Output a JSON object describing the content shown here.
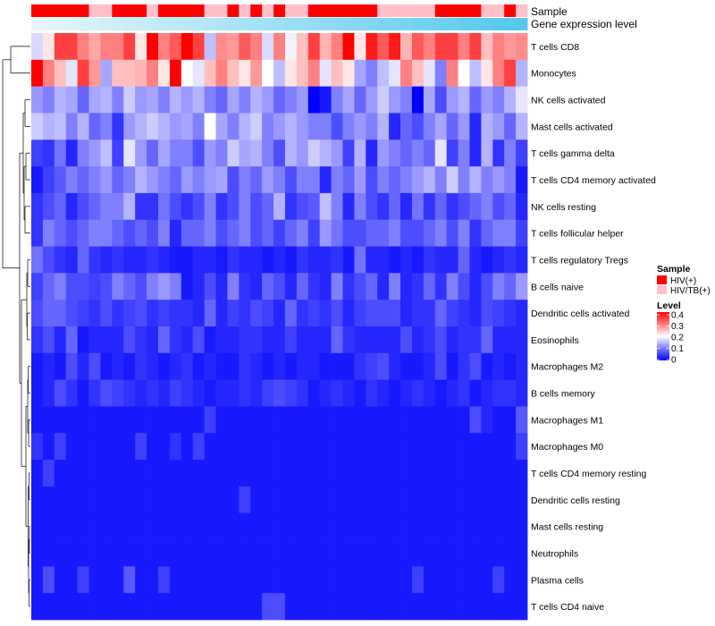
{
  "chart_data": {
    "type": "heatmap",
    "title": "",
    "annotation_tracks": [
      "Sample",
      "Gene expression level"
    ],
    "sample_groups": {
      "title": "Sample",
      "entries": [
        {
          "label": "HIV(+)",
          "color": "#ff0000"
        },
        {
          "label": "HIV/TB(+)",
          "color": "#ffc0cb"
        }
      ],
      "per_column": [
        0,
        0,
        0,
        0,
        0,
        1,
        1,
        0,
        0,
        0,
        1,
        0,
        0,
        0,
        0,
        1,
        1,
        0,
        1,
        0,
        1,
        0,
        1,
        1,
        0,
        0,
        0,
        0,
        0,
        0,
        1,
        1,
        1,
        1,
        1,
        0,
        0,
        0,
        0,
        1,
        1,
        0,
        1
      ]
    },
    "gene_expression_gradient": {
      "from": "#e6f6fb",
      "to": "#55c8ee"
    },
    "level_legend": {
      "title": "Level",
      "ticks": [
        "0.4",
        "0.3",
        "0.2",
        "0.1",
        "0"
      ],
      "min": 0,
      "max": 0.4,
      "colors": {
        "low": "#0000ff",
        "mid": "#ffffff",
        "high": "#ff0000"
      }
    },
    "rows": [
      {
        "name": "T cells CD8",
        "values": [
          0.17,
          0.22,
          0.35,
          0.35,
          0.3,
          0.27,
          0.3,
          0.3,
          0.35,
          0.22,
          0.4,
          0.3,
          0.33,
          0.4,
          0.35,
          0.15,
          0.29,
          0.28,
          0.33,
          0.3,
          0.17,
          0.3,
          0.19,
          0.25,
          0.35,
          0.26,
          0.3,
          0.4,
          0.22,
          0.38,
          0.33,
          0.38,
          0.26,
          0.33,
          0.3,
          0.35,
          0.35,
          0.3,
          0.35,
          0.25,
          0.3,
          0.28,
          0.29
        ]
      },
      {
        "name": "Monocytes",
        "values": [
          0.4,
          0.3,
          0.25,
          0.18,
          0.35,
          0.28,
          0.13,
          0.25,
          0.25,
          0.26,
          0.3,
          0.22,
          0.4,
          0.2,
          0.18,
          0.25,
          0.3,
          0.25,
          0.22,
          0.28,
          0.2,
          0.15,
          0.22,
          0.25,
          0.3,
          0.18,
          0.25,
          0.22,
          0.13,
          0.1,
          0.15,
          0.18,
          0.3,
          0.25,
          0.18,
          0.1,
          0.3,
          0.2,
          0.15,
          0.22,
          0.3,
          0.35,
          0.14
        ]
      },
      {
        "name": "NK cells activated",
        "values": [
          0.12,
          0.1,
          0.14,
          0.13,
          0.08,
          0.13,
          0.14,
          0.1,
          0.16,
          0.12,
          0.13,
          0.1,
          0.14,
          0.12,
          0.14,
          0.1,
          0.08,
          0.13,
          0.1,
          0.14,
          0.12,
          0.08,
          0.1,
          0.12,
          0.0,
          0.02,
          0.1,
          0.13,
          0.08,
          0.12,
          0.16,
          0.12,
          0.1,
          0.0,
          0.13,
          0.06,
          0.12,
          0.14,
          0.08,
          0.12,
          0.1,
          0.14,
          0.18
        ]
      },
      {
        "name": "Mast cells activated",
        "values": [
          0.16,
          0.14,
          0.15,
          0.1,
          0.14,
          0.08,
          0.1,
          0.04,
          0.12,
          0.14,
          0.16,
          0.14,
          0.12,
          0.13,
          0.1,
          0.2,
          0.13,
          0.1,
          0.14,
          0.16,
          0.1,
          0.12,
          0.14,
          0.12,
          0.1,
          0.1,
          0.06,
          0.1,
          0.12,
          0.1,
          0.14,
          0.03,
          0.08,
          0.06,
          0.1,
          0.13,
          0.08,
          0.12,
          0.03,
          0.14,
          0.12,
          0.08,
          0.14
        ]
      },
      {
        "name": "T cells gamma delta",
        "values": [
          0.05,
          0.04,
          0.09,
          0.03,
          0.1,
          0.12,
          0.15,
          0.05,
          0.18,
          0.12,
          0.08,
          0.13,
          0.1,
          0.1,
          0.06,
          0.12,
          0.1,
          0.16,
          0.13,
          0.14,
          0.1,
          0.06,
          0.14,
          0.12,
          0.16,
          0.14,
          0.12,
          0.05,
          0.14,
          0.03,
          0.12,
          0.1,
          0.08,
          0.1,
          0.08,
          0.18,
          0.05,
          0.1,
          0.03,
          0.14,
          0.04,
          0.1,
          0.05
        ]
      },
      {
        "name": "T cells CD4 memory activated",
        "values": [
          0.02,
          0.05,
          0.07,
          0.1,
          0.08,
          0.1,
          0.12,
          0.08,
          0.1,
          0.14,
          0.12,
          0.1,
          0.08,
          0.12,
          0.1,
          0.12,
          0.13,
          0.06,
          0.1,
          0.08,
          0.12,
          0.1,
          0.06,
          0.1,
          0.1,
          0.03,
          0.1,
          0.08,
          0.12,
          0.06,
          0.1,
          0.08,
          0.1,
          0.12,
          0.14,
          0.1,
          0.16,
          0.1,
          0.14,
          0.1,
          0.12,
          0.1,
          0.02
        ]
      },
      {
        "name": "NK cells resting",
        "values": [
          0.04,
          0.06,
          0.08,
          0.03,
          0.06,
          0.08,
          0.1,
          0.1,
          0.14,
          0.04,
          0.04,
          0.09,
          0.06,
          0.04,
          0.06,
          0.1,
          0.04,
          0.06,
          0.1,
          0.06,
          0.08,
          0.14,
          0.04,
          0.06,
          0.07,
          0.15,
          0.1,
          0.03,
          0.1,
          0.06,
          0.04,
          0.08,
          0.03,
          0.09,
          0.04,
          0.08,
          0.04,
          0.06,
          0.08,
          0.1,
          0.06,
          0.08,
          0.03
        ]
      },
      {
        "name": "T cells follicular helper",
        "values": [
          0.04,
          0.1,
          0.08,
          0.06,
          0.08,
          0.1,
          0.1,
          0.08,
          0.06,
          0.08,
          0.06,
          0.1,
          0.03,
          0.08,
          0.08,
          0.1,
          0.06,
          0.08,
          0.1,
          0.06,
          0.08,
          0.05,
          0.08,
          0.1,
          0.05,
          0.12,
          0.09,
          0.06,
          0.06,
          0.08,
          0.08,
          0.1,
          0.06,
          0.06,
          0.08,
          0.1,
          0.06,
          0.1,
          0.04,
          0.08,
          0.1,
          0.1,
          0.05
        ]
      },
      {
        "name": "T cells regulatory  Tregs",
        "values": [
          0.09,
          0.06,
          0.04,
          0.03,
          0.08,
          0.04,
          0.03,
          0.04,
          0.03,
          0.03,
          0.04,
          0.03,
          0.02,
          0.02,
          0.03,
          0.03,
          0.02,
          0.04,
          0.03,
          0.03,
          0.02,
          0.03,
          0.02,
          0.04,
          0.03,
          0.03,
          0.04,
          0.02,
          0.09,
          0.03,
          0.03,
          0.02,
          0.03,
          0.02,
          0.04,
          0.03,
          0.03,
          0.08,
          0.03,
          0.02,
          0.03,
          0.04,
          0.03
        ]
      },
      {
        "name": "B cells naive",
        "values": [
          0.05,
          0.08,
          0.1,
          0.06,
          0.06,
          0.05,
          0.06,
          0.1,
          0.08,
          0.06,
          0.1,
          0.12,
          0.1,
          0.02,
          0.03,
          0.06,
          0.03,
          0.1,
          0.04,
          0.03,
          0.08,
          0.06,
          0.03,
          0.08,
          0.04,
          0.03,
          0.1,
          0.04,
          0.06,
          0.08,
          0.03,
          0.1,
          0.03,
          0.04,
          0.08,
          0.04,
          0.1,
          0.06,
          0.03,
          0.06,
          0.1,
          0.08,
          0.12
        ]
      },
      {
        "name": "Dendritic cells activated",
        "values": [
          0.06,
          0.08,
          0.08,
          0.06,
          0.05,
          0.04,
          0.06,
          0.04,
          0.05,
          0.06,
          0.04,
          0.05,
          0.04,
          0.04,
          0.03,
          0.08,
          0.03,
          0.05,
          0.04,
          0.06,
          0.05,
          0.03,
          0.08,
          0.04,
          0.05,
          0.04,
          0.06,
          0.03,
          0.05,
          0.06,
          0.06,
          0.06,
          0.03,
          0.04,
          0.04,
          0.08,
          0.05,
          0.04,
          0.03,
          0.06,
          0.05,
          0.04,
          0.03
        ]
      },
      {
        "name": "Eosinophils",
        "values": [
          0.04,
          0.06,
          0.03,
          0.08,
          0.02,
          0.03,
          0.03,
          0.03,
          0.06,
          0.04,
          0.03,
          0.08,
          0.04,
          0.03,
          0.06,
          0.02,
          0.03,
          0.03,
          0.04,
          0.04,
          0.03,
          0.03,
          0.05,
          0.03,
          0.03,
          0.03,
          0.08,
          0.04,
          0.03,
          0.03,
          0.03,
          0.03,
          0.06,
          0.03,
          0.04,
          0.06,
          0.03,
          0.04,
          0.04,
          0.08,
          0.03,
          0.03,
          0.03
        ]
      },
      {
        "name": "Macrophages M2",
        "values": [
          0.02,
          0.03,
          0.02,
          0.06,
          0.03,
          0.06,
          0.02,
          0.03,
          0.02,
          0.04,
          0.03,
          0.02,
          0.03,
          0.04,
          0.02,
          0.03,
          0.02,
          0.02,
          0.04,
          0.03,
          0.02,
          0.03,
          0.02,
          0.03,
          0.03,
          0.02,
          0.02,
          0.02,
          0.04,
          0.05,
          0.06,
          0.03,
          0.02,
          0.02,
          0.03,
          0.06,
          0.02,
          0.04,
          0.06,
          0.02,
          0.03,
          0.02,
          0.03
        ]
      },
      {
        "name": "B cells memory",
        "values": [
          0.02,
          0.03,
          0.06,
          0.04,
          0.02,
          0.04,
          0.06,
          0.05,
          0.04,
          0.03,
          0.04,
          0.03,
          0.05,
          0.04,
          0.03,
          0.02,
          0.03,
          0.03,
          0.04,
          0.03,
          0.05,
          0.06,
          0.05,
          0.04,
          0.02,
          0.03,
          0.04,
          0.03,
          0.02,
          0.04,
          0.03,
          0.02,
          0.03,
          0.04,
          0.03,
          0.02,
          0.03,
          0.04,
          0.02,
          0.03,
          0.04,
          0.04,
          0.03
        ]
      },
      {
        "name": "Macrophages M1",
        "values": [
          0.02,
          0.02,
          0.02,
          0.02,
          0.02,
          0.02,
          0.02,
          0.02,
          0.02,
          0.02,
          0.02,
          0.02,
          0.02,
          0.02,
          0.02,
          0.05,
          0.02,
          0.02,
          0.02,
          0.02,
          0.02,
          0.02,
          0.02,
          0.02,
          0.02,
          0.02,
          0.02,
          0.02,
          0.02,
          0.02,
          0.02,
          0.02,
          0.02,
          0.02,
          0.02,
          0.02,
          0.02,
          0.02,
          0.06,
          0.03,
          0.02,
          0.02,
          0.07
        ]
      },
      {
        "name": "Macrophages M0",
        "values": [
          0.04,
          0.02,
          0.05,
          0.02,
          0.02,
          0.02,
          0.02,
          0.02,
          0.02,
          0.05,
          0.02,
          0.02,
          0.04,
          0.02,
          0.05,
          0.02,
          0.02,
          0.02,
          0.02,
          0.02,
          0.02,
          0.02,
          0.02,
          0.02,
          0.02,
          0.02,
          0.02,
          0.02,
          0.02,
          0.02,
          0.02,
          0.02,
          0.02,
          0.02,
          0.02,
          0.02,
          0.02,
          0.02,
          0.02,
          0.02,
          0.02,
          0.02,
          0.05
        ]
      },
      {
        "name": "T cells CD4 memory resting",
        "values": [
          0.02,
          0.05,
          0.02,
          0.02,
          0.02,
          0.02,
          0.02,
          0.02,
          0.02,
          0.02,
          0.02,
          0.02,
          0.02,
          0.02,
          0.02,
          0.02,
          0.02,
          0.02,
          0.02,
          0.02,
          0.02,
          0.02,
          0.02,
          0.02,
          0.02,
          0.02,
          0.02,
          0.02,
          0.02,
          0.02,
          0.02,
          0.02,
          0.02,
          0.02,
          0.02,
          0.02,
          0.02,
          0.02,
          0.02,
          0.02,
          0.02,
          0.02,
          0.02
        ]
      },
      {
        "name": "Dendritic cells resting",
        "values": [
          0.02,
          0.02,
          0.02,
          0.02,
          0.02,
          0.02,
          0.02,
          0.02,
          0.02,
          0.02,
          0.02,
          0.02,
          0.02,
          0.02,
          0.02,
          0.02,
          0.02,
          0.02,
          0.05,
          0.02,
          0.02,
          0.02,
          0.02,
          0.02,
          0.02,
          0.02,
          0.02,
          0.02,
          0.02,
          0.02,
          0.02,
          0.02,
          0.02,
          0.02,
          0.02,
          0.02,
          0.02,
          0.02,
          0.02,
          0.02,
          0.02,
          0.02,
          0.02
        ]
      },
      {
        "name": "Mast cells resting",
        "values": [
          0.02,
          0.02,
          0.02,
          0.02,
          0.02,
          0.02,
          0.02,
          0.02,
          0.02,
          0.02,
          0.02,
          0.02,
          0.02,
          0.02,
          0.02,
          0.02,
          0.02,
          0.02,
          0.02,
          0.02,
          0.02,
          0.02,
          0.02,
          0.02,
          0.02,
          0.02,
          0.02,
          0.02,
          0.02,
          0.02,
          0.02,
          0.02,
          0.02,
          0.02,
          0.02,
          0.02,
          0.02,
          0.02,
          0.02,
          0.02,
          0.02,
          0.02,
          0.02
        ]
      },
      {
        "name": "Neutrophils",
        "values": [
          0.02,
          0.02,
          0.02,
          0.02,
          0.02,
          0.02,
          0.02,
          0.02,
          0.02,
          0.02,
          0.02,
          0.02,
          0.02,
          0.02,
          0.02,
          0.02,
          0.02,
          0.02,
          0.02,
          0.02,
          0.02,
          0.02,
          0.02,
          0.02,
          0.02,
          0.02,
          0.02,
          0.02,
          0.02,
          0.02,
          0.02,
          0.02,
          0.02,
          0.02,
          0.02,
          0.02,
          0.02,
          0.02,
          0.02,
          0.02,
          0.02,
          0.02,
          0.02
        ]
      },
      {
        "name": "Plasma cells",
        "values": [
          0.02,
          0.06,
          0.02,
          0.02,
          0.05,
          0.02,
          0.02,
          0.02,
          0.07,
          0.02,
          0.02,
          0.05,
          0.02,
          0.02,
          0.02,
          0.02,
          0.02,
          0.02,
          0.02,
          0.02,
          0.02,
          0.02,
          0.02,
          0.02,
          0.02,
          0.02,
          0.02,
          0.02,
          0.02,
          0.02,
          0.02,
          0.02,
          0.02,
          0.05,
          0.02,
          0.02,
          0.02,
          0.02,
          0.02,
          0.02,
          0.05,
          0.02,
          0.02
        ]
      },
      {
        "name": "T cells CD4 naive",
        "values": [
          0.02,
          0.02,
          0.02,
          0.02,
          0.02,
          0.02,
          0.02,
          0.02,
          0.02,
          0.02,
          0.02,
          0.02,
          0.02,
          0.02,
          0.02,
          0.02,
          0.02,
          0.02,
          0.02,
          0.02,
          0.06,
          0.06,
          0.02,
          0.02,
          0.02,
          0.02,
          0.02,
          0.02,
          0.02,
          0.02,
          0.02,
          0.02,
          0.02,
          0.02,
          0.02,
          0.02,
          0.02,
          0.02,
          0.02,
          0.02,
          0.02,
          0.02,
          0.02
        ]
      }
    ]
  }
}
